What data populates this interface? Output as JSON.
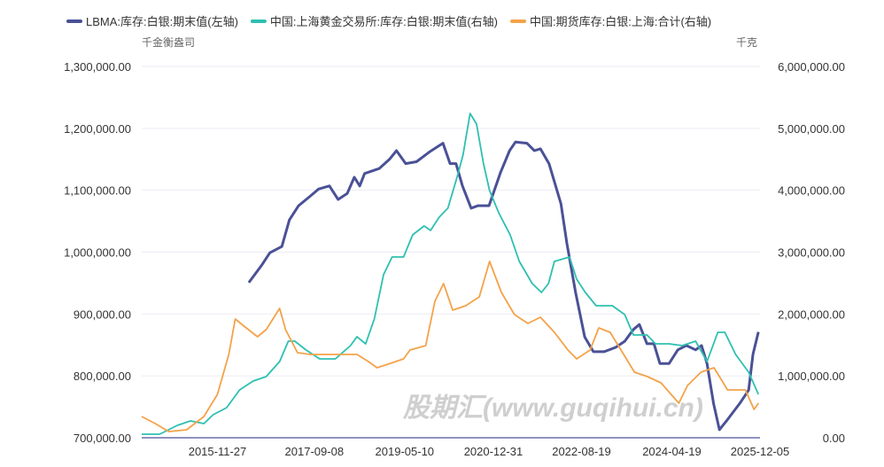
{
  "watermark": "股期汇(www.guqihui.cn)",
  "chart_data": {
    "type": "line",
    "title": "",
    "left_unit": "千金衡盎司",
    "right_unit": "千克",
    "ylim_left": [
      700000,
      1300000
    ],
    "ylim_right": [
      0,
      6000000
    ],
    "xlim": [
      2014.5,
      2025.93
    ],
    "grid": true,
    "legend_position": "top",
    "left_ticks": [
      "700,000.00",
      "800,000.00",
      "900,000.00",
      "1,000,000.00",
      "1,100,000.00",
      "1,200,000.00",
      "1,300,000.00"
    ],
    "right_ticks": [
      "0.00",
      "1,000,000.00",
      "2,000,000.00",
      "3,000,000.00",
      "4,000,000.00",
      "5,000,000.00",
      "6,000,000.00"
    ],
    "x_ticks": [
      {
        "label": "2015-11-27",
        "x": 2015.9
      },
      {
        "label": "2017-09-08",
        "x": 2017.69
      },
      {
        "label": "2019-05-10",
        "x": 2019.36
      },
      {
        "label": "2020-12-31",
        "x": 2021.0
      },
      {
        "label": "2022-08-19",
        "x": 2022.63
      },
      {
        "label": "2024-04-19",
        "x": 2024.3
      },
      {
        "label": "2025-12-05",
        "x": 2025.93
      }
    ],
    "series": [
      {
        "name": "LBMA:库存:白银:期末值(左轴)",
        "axis": "left",
        "color": "#4a5196",
        "x": [
          2016.48,
          2016.71,
          2016.87,
          2017.09,
          2017.23,
          2017.4,
          2017.61,
          2017.77,
          2017.97,
          2018.13,
          2018.3,
          2018.43,
          2018.53,
          2018.62,
          2018.89,
          2019.08,
          2019.21,
          2019.38,
          2019.58,
          2019.82,
          2020.07,
          2020.2,
          2020.31,
          2020.43,
          2020.59,
          2020.72,
          2020.92,
          2021.13,
          2021.3,
          2021.41,
          2021.62,
          2021.76,
          2021.87,
          2022.03,
          2022.25,
          2022.36,
          2022.52,
          2022.69,
          2022.85,
          2023.05,
          2023.26,
          2023.43,
          2023.59,
          2023.7,
          2023.84,
          2023.97,
          2024.08,
          2024.25,
          2024.41,
          2024.57,
          2024.74,
          2024.85,
          2024.95,
          2025.07,
          2025.18,
          2025.31,
          2025.56,
          2025.72,
          2025.8,
          2025.9
        ],
        "y": [
          950700,
          978000,
          999000,
          1009000,
          1052000,
          1075000,
          1090000,
          1102000,
          1107000,
          1085000,
          1095000,
          1121000,
          1107000,
          1127000,
          1135000,
          1150000,
          1164000,
          1143000,
          1146000,
          1162000,
          1176000,
          1143000,
          1143000,
          1107000,
          1071000,
          1075000,
          1075000,
          1128000,
          1164000,
          1178000,
          1176000,
          1164000,
          1167000,
          1143000,
          1078000,
          1014000,
          935000,
          863000,
          839000,
          839000,
          846000,
          856000,
          875000,
          883000,
          852000,
          852000,
          820000,
          820000,
          842000,
          849000,
          842000,
          849000,
          820000,
          756000,
          713000,
          727000,
          756000,
          777000,
          835000,
          871000
        ]
      },
      {
        "name": "中国:上海黄金交易所:库存:白银:期末值(右轴)",
        "axis": "right",
        "color": "#2ec0b0",
        "x": [
          2014.5,
          2014.83,
          2015.16,
          2015.4,
          2015.65,
          2015.82,
          2016.07,
          2016.31,
          2016.56,
          2016.8,
          2017.05,
          2017.21,
          2017.33,
          2017.54,
          2017.79,
          2018.08,
          2018.36,
          2018.48,
          2018.64,
          2018.8,
          2018.97,
          2019.13,
          2019.34,
          2019.51,
          2019.72,
          2019.84,
          2020.0,
          2020.16,
          2020.33,
          2020.44,
          2020.57,
          2020.69,
          2020.82,
          2020.93,
          2021.1,
          2021.31,
          2021.48,
          2021.72,
          2021.89,
          2022.02,
          2022.13,
          2022.41,
          2022.54,
          2022.7,
          2022.9,
          2023.2,
          2023.43,
          2023.59,
          2023.84,
          2024.0,
          2024.25,
          2024.49,
          2024.74,
          2024.95,
          2025.15,
          2025.28,
          2025.48,
          2025.72,
          2025.9
        ],
        "y": [
          57000,
          57000,
          200000,
          272000,
          229000,
          372000,
          487000,
          773000,
          916000,
          988000,
          1231000,
          1561000,
          1561000,
          1418000,
          1274000,
          1274000,
          1489000,
          1632000,
          1518000,
          1919000,
          2635000,
          2921000,
          2921000,
          3279000,
          3422000,
          3351000,
          3566000,
          3709000,
          4210000,
          4568000,
          5241000,
          5069000,
          4425000,
          3995000,
          3637000,
          3279000,
          2850000,
          2492000,
          2348000,
          2492000,
          2850000,
          2921000,
          2563000,
          2348000,
          2134000,
          2134000,
          1990000,
          1661000,
          1661000,
          1518000,
          1518000,
          1489000,
          1561000,
          1231000,
          1704000,
          1704000,
          1346000,
          1060000,
          702000
        ]
      },
      {
        "name": "中国:期货库存:白银:上海:合计(右轴)",
        "axis": "right",
        "color": "#f4a24a",
        "x": [
          2014.5,
          2014.75,
          2015.0,
          2015.33,
          2015.65,
          2015.9,
          2016.11,
          2016.23,
          2016.39,
          2016.64,
          2016.8,
          2017.05,
          2017.16,
          2017.38,
          2017.62,
          2017.95,
          2018.28,
          2018.48,
          2018.69,
          2018.85,
          2019.1,
          2019.34,
          2019.46,
          2019.75,
          2019.92,
          2020.08,
          2020.25,
          2020.49,
          2020.74,
          2020.93,
          2021.15,
          2021.39,
          2021.64,
          2021.87,
          2022.13,
          2022.38,
          2022.54,
          2022.79,
          2022.95,
          2023.16,
          2023.36,
          2023.61,
          2023.85,
          2024.1,
          2024.43,
          2024.59,
          2024.84,
          2025.08,
          2025.33,
          2025.66,
          2025.82,
          2025.9
        ],
        "y": [
          344000,
          229000,
          100000,
          129000,
          344000,
          702000,
          1346000,
          1919000,
          1804000,
          1632000,
          1747000,
          2091000,
          1747000,
          1375000,
          1346000,
          1346000,
          1346000,
          1346000,
          1231000,
          1131000,
          1203000,
          1274000,
          1418000,
          1489000,
          2205000,
          2492000,
          2062000,
          2134000,
          2277000,
          2850000,
          2348000,
          1990000,
          1847000,
          1947000,
          1704000,
          1418000,
          1274000,
          1418000,
          1776000,
          1704000,
          1418000,
          1060000,
          988000,
          888000,
          559000,
          845000,
          1060000,
          1131000,
          773000,
          773000,
          458000,
          559000
        ]
      }
    ]
  }
}
